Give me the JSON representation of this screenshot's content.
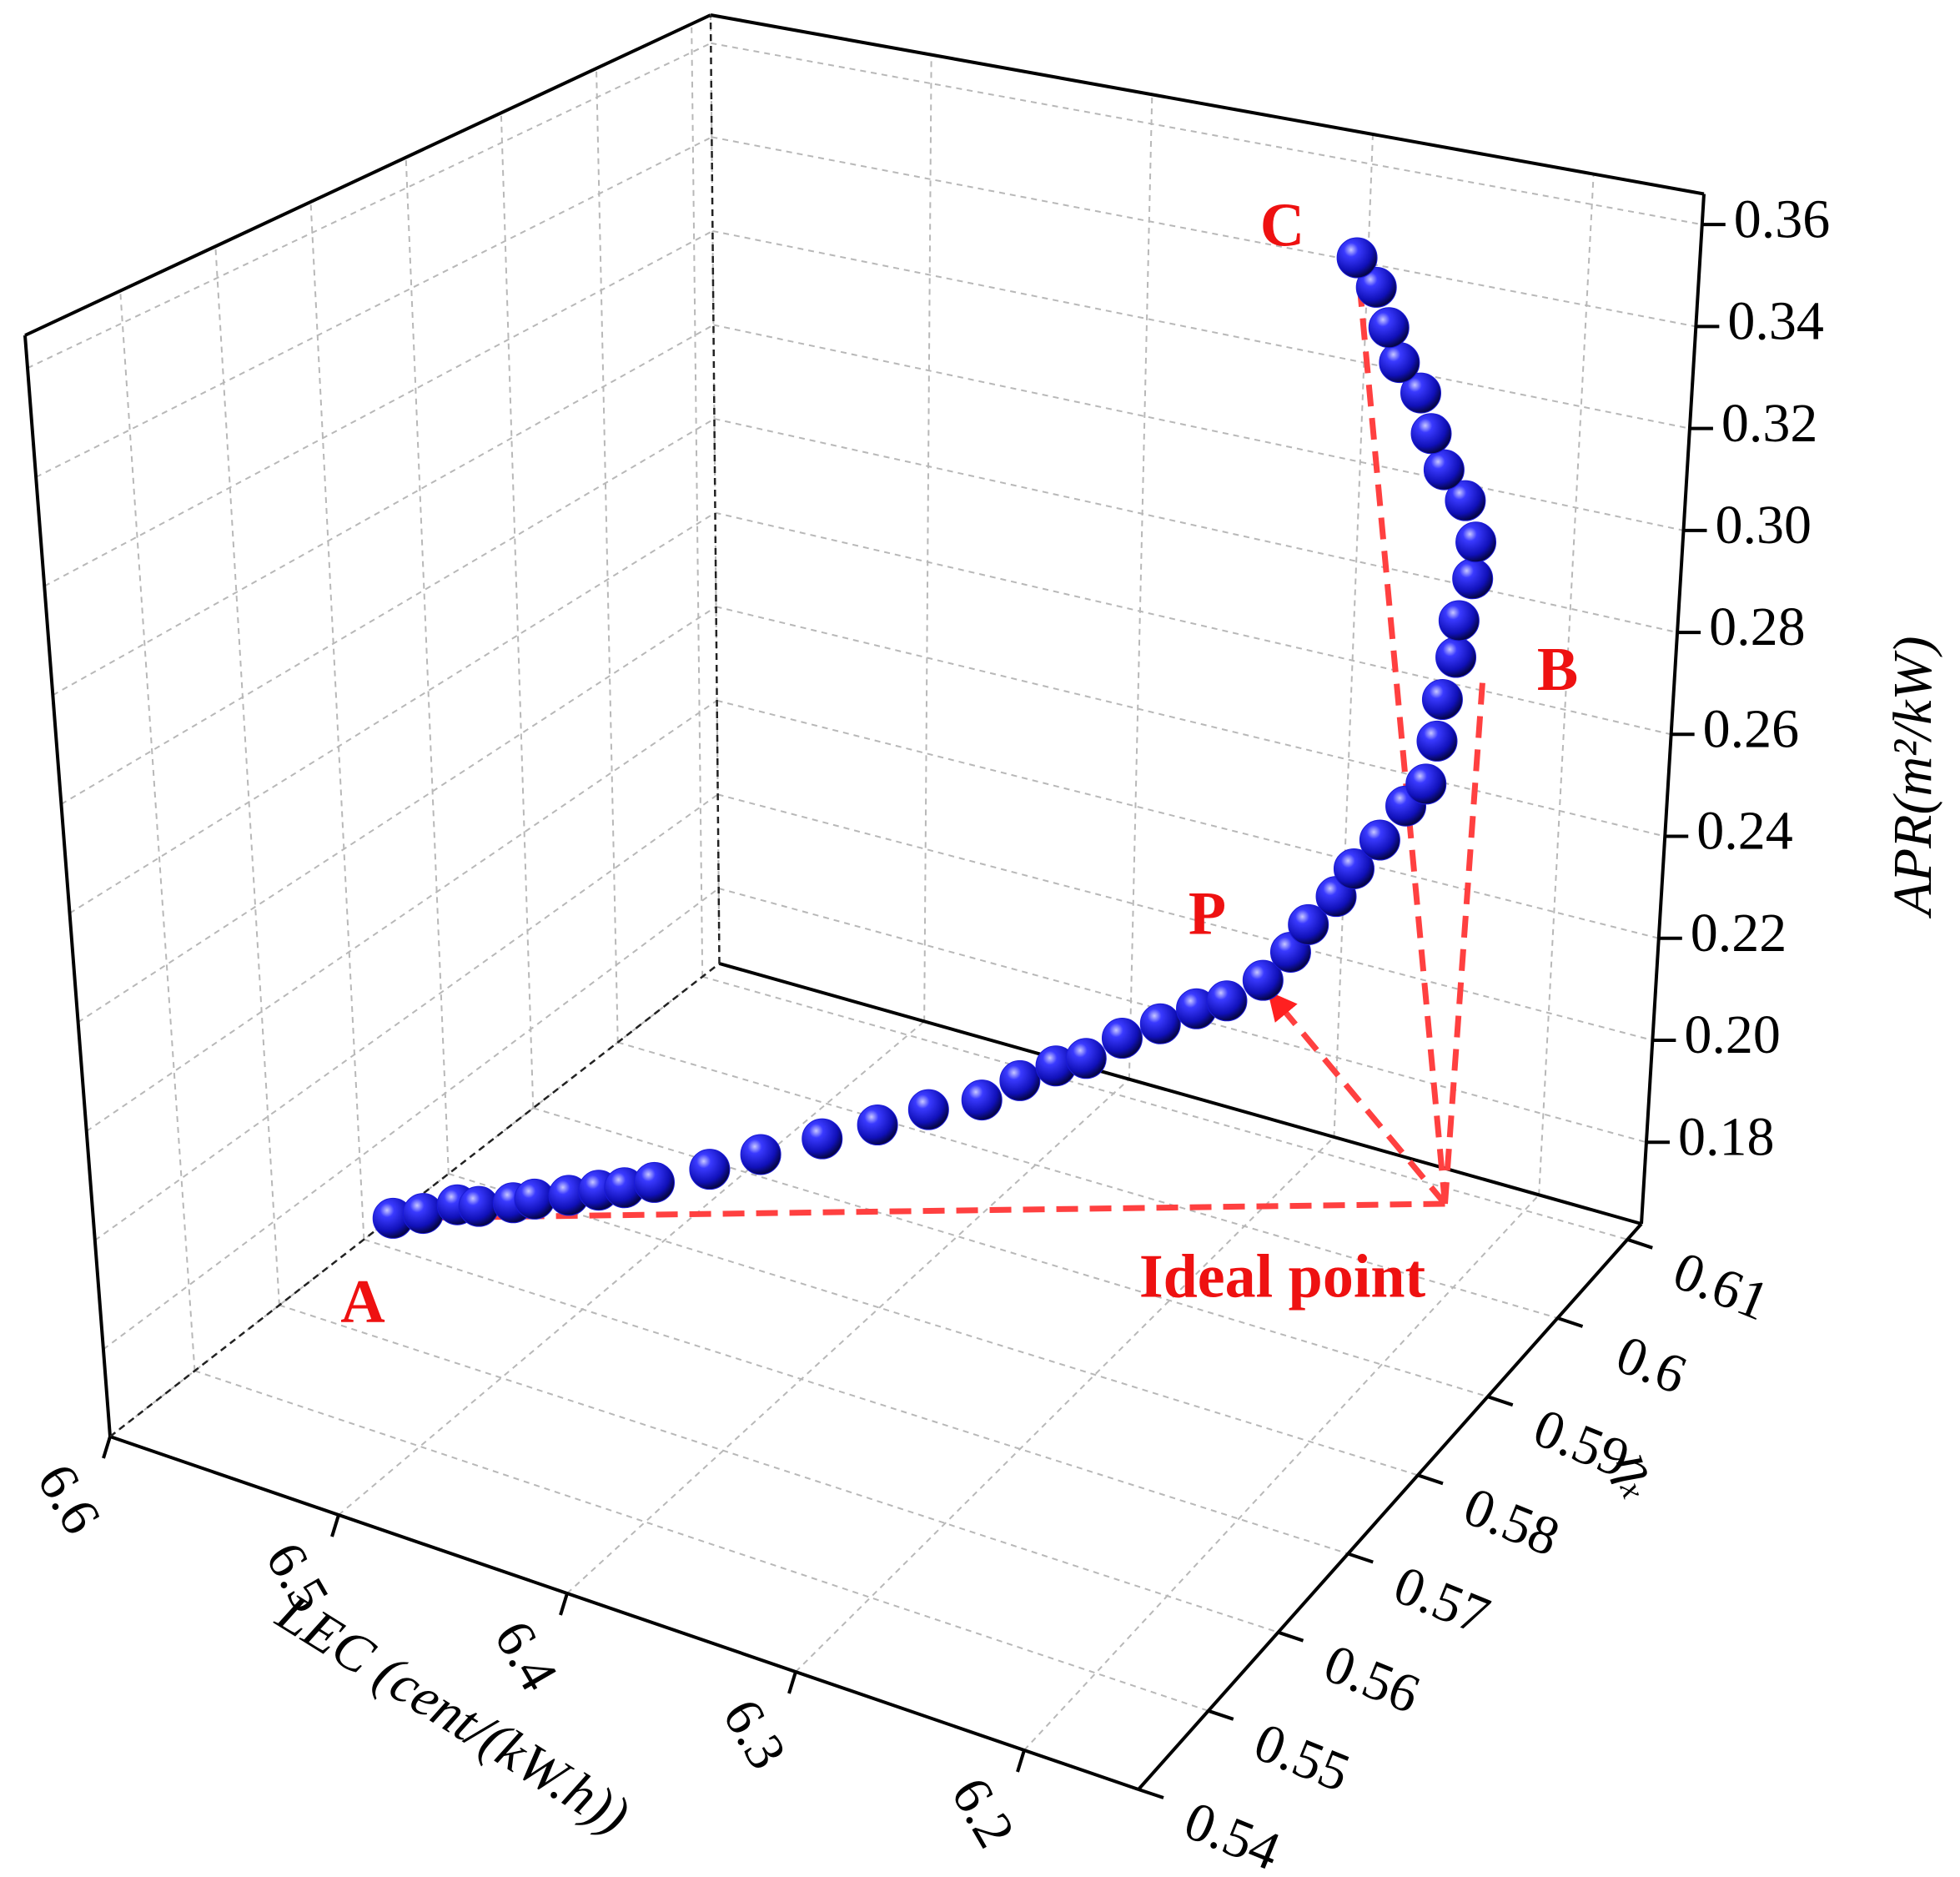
{
  "chart_data": {
    "type": "scatter3d",
    "x_label": "LEC (cent/(kW.h))",
    "y_label": "ηₓ",
    "z_label": "APR(m²/kW)",
    "xlim": [
      6.6,
      6.15
    ],
    "ylim": [
      0.54,
      0.612
    ],
    "zlim": [
      0.164,
      0.366
    ],
    "xticks": [
      6.6,
      6.5,
      6.4,
      6.3,
      6.2
    ],
    "yticks": [
      0.54,
      0.55,
      0.56,
      0.57,
      0.58,
      0.59,
      0.6,
      0.61
    ],
    "zticks": [
      0.18,
      {
        "value": 0.2,
        "label": "0.20"
      },
      0.22,
      0.24,
      0.26,
      0.28,
      {
        "value": 0.3,
        "label": "0.30"
      },
      0.32,
      0.34,
      0.36
    ],
    "grid": true,
    "color": "#1a1ad8",
    "x": [
      6.586,
      6.576,
      6.564,
      6.554,
      6.542,
      6.532,
      6.52,
      6.51,
      6.498,
      6.488,
      6.466,
      6.446,
      6.425,
      6.403,
      6.383,
      6.362,
      6.348,
      6.335,
      6.321,
      6.308,
      6.294,
      6.281,
      6.267,
      6.254,
      6.245,
      6.237,
      6.228,
      6.22,
      6.212,
      6.204,
      6.195,
      6.194,
      6.192,
      6.19,
      6.189,
      6.187,
      6.186,
      6.195,
      6.205,
      6.215,
      6.224,
      6.234,
      6.243,
      6.253,
      6.262
    ],
    "y": [
      0.57,
      0.571,
      0.572,
      0.572,
      0.573,
      0.573,
      0.574,
      0.575,
      0.575,
      0.576,
      0.577,
      0.578,
      0.58,
      0.581,
      0.582,
      0.583,
      0.584,
      0.585,
      0.585,
      0.586,
      0.587,
      0.588,
      0.588,
      0.589,
      0.59,
      0.59,
      0.591,
      0.591,
      0.592,
      0.593,
      0.593,
      0.594,
      0.594,
      0.595,
      0.595,
      0.596,
      0.596,
      0.597,
      0.597,
      0.598,
      0.599,
      0.599,
      0.6,
      0.601,
      0.601
    ],
    "z": [
      0.17,
      0.171,
      0.173,
      0.174,
      0.175,
      0.177,
      0.178,
      0.179,
      0.181,
      0.182,
      0.186,
      0.19,
      0.193,
      0.197,
      0.201,
      0.204,
      0.208,
      0.211,
      0.214,
      0.218,
      0.221,
      0.224,
      0.227,
      0.231,
      0.236,
      0.242,
      0.247,
      0.253,
      0.258,
      0.264,
      0.269,
      0.276,
      0.284,
      0.291,
      0.298,
      0.305,
      0.312,
      0.318,
      0.323,
      0.328,
      0.334,
      0.339,
      0.344,
      0.35,
      0.355
    ],
    "annotations": [
      {
        "text": "A"
      },
      {
        "text": "B"
      },
      {
        "text": "C"
      },
      {
        "text": "P"
      },
      {
        "text": "Ideal point"
      }
    ]
  }
}
